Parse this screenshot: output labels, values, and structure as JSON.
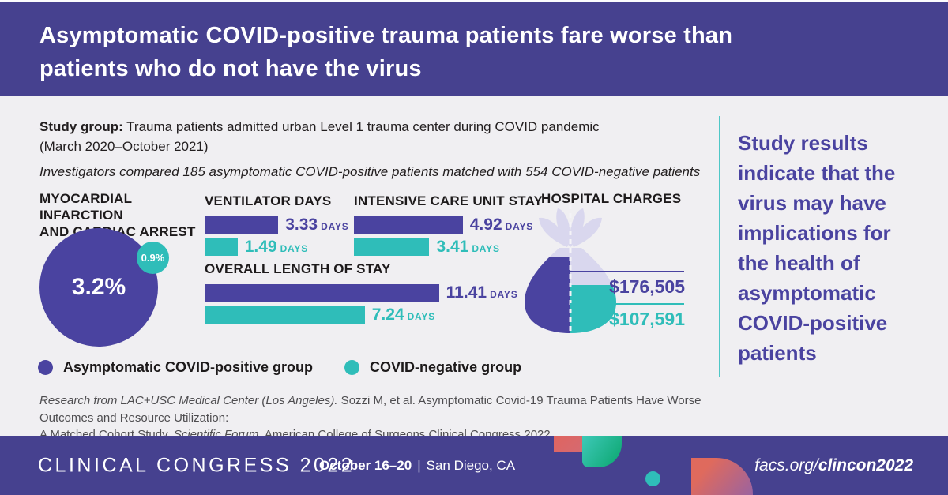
{
  "colors": {
    "brand_purple": "#46418f",
    "accent_purple": "#4a43a0",
    "teal": "#2fbdb9",
    "lavender_bag": "#d9d7ee",
    "background": "#f0eff2",
    "text_dark": "#1d1a1b",
    "citation_gray": "#4e4d50"
  },
  "header": {
    "title_line1": "Asymptomatic COVID-positive trauma patients fare worse than",
    "title_line2": "patients who do not have the virus"
  },
  "study": {
    "group_label": "Study group:",
    "group_text": " Trauma patients admitted urban Level 1 trauma center during COVID pandemic",
    "group_text2": "(March 2020–October 2021)",
    "comparison": "Investigators compared 185 asymptomatic COVID-positive patients matched with 554 COVID-negative patients"
  },
  "units": {
    "days": "DAYS"
  },
  "sections": {
    "mi": {
      "title_line1": "MYOCARDIAL INFARCTION",
      "title_line2": "AND CARDIAC ARREST",
      "positive_label": "3.2%",
      "negative_label": "0.9%"
    },
    "ventilator": {
      "title": "VENTILATOR DAYS"
    },
    "icu": {
      "title": "INTENSIVE CARE UNIT STAY"
    },
    "los": {
      "title": "OVERALL LENGTH OF STAY"
    },
    "charges": {
      "title": "HOSPITAL CHARGES",
      "positive_label": "$176,505",
      "negative_label": "$107,591"
    }
  },
  "legend": {
    "positive": "Asymptomatic COVID-positive group",
    "negative": "COVID-negative group"
  },
  "takeaway": "Study results indicate that the virus may have implications for the health of asymptomatic COVID-positive patients",
  "citation": {
    "part1_italic": "Research from LAC+USC Medical Center (Los Angeles).",
    "part2": " Sozzi M, et al. Asymptomatic Covid-19 Trauma Patients Have Worse Outcomes and Resource Utilization:",
    "part3": "A Matched Cohort Study. ",
    "part4_italic": "Scientific Forum,",
    "part5": " American College of Surgeons Clinical Congress 2022."
  },
  "footer": {
    "congress": "CLINICAL CONGRESS 2022",
    "dates": "October 16–20",
    "separator": "|",
    "location": "San Diego, CA",
    "url_prefix": "facs.org/",
    "url_bold": "clincon2022"
  },
  "chart_data": [
    {
      "type": "bubble",
      "title": "Myocardial infarction and cardiac arrest",
      "series": [
        {
          "name": "Asymptomatic COVID-positive group",
          "value_pct": 3.2
        },
        {
          "name": "COVID-negative group",
          "value_pct": 0.9
        }
      ],
      "unit": "% of patients"
    },
    {
      "type": "bar",
      "title": "Ventilator days",
      "categories": [
        "Asymptomatic COVID-positive group",
        "COVID-negative group"
      ],
      "values": [
        3.33,
        1.49
      ],
      "unit": "days"
    },
    {
      "type": "bar",
      "title": "Intensive care unit stay",
      "categories": [
        "Asymptomatic COVID-positive group",
        "COVID-negative group"
      ],
      "values": [
        4.92,
        3.41
      ],
      "unit": "days"
    },
    {
      "type": "bar",
      "title": "Overall length of stay",
      "categories": [
        "Asymptomatic COVID-positive group",
        "COVID-negative group"
      ],
      "values": [
        11.41,
        7.24
      ],
      "unit": "days"
    },
    {
      "type": "pictogram",
      "title": "Hospital charges",
      "categories": [
        "Asymptomatic COVID-positive group",
        "COVID-negative group"
      ],
      "values": [
        176505,
        107591
      ],
      "unit": "USD"
    }
  ]
}
